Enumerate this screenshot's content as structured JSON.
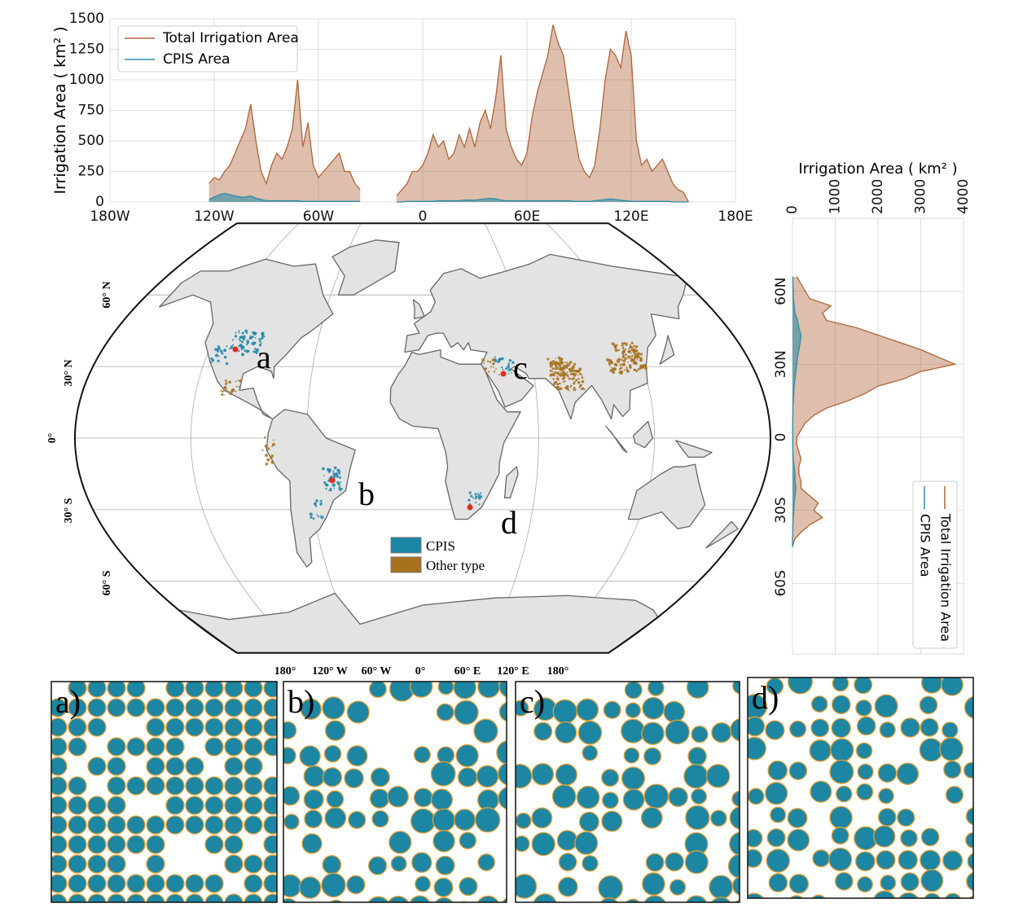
{
  "chart_data": [
    {
      "type": "area",
      "ylabel": "Irrigation Area ( km² )",
      "x": [
        -123,
        -120,
        -117,
        -114,
        -111,
        -108,
        -105,
        -102,
        -99,
        -96,
        -93,
        -90,
        -87,
        -84,
        -81,
        -78,
        -75,
        -72,
        -69,
        -66,
        -63,
        -60,
        -57,
        -54,
        -51,
        -48,
        -45,
        -42,
        -39,
        -36,
        -33,
        -30,
        -27,
        -24,
        -21,
        -18,
        -15,
        -12,
        -9,
        -6,
        -3,
        0,
        3,
        6,
        9,
        12,
        15,
        18,
        21,
        24,
        27,
        30,
        33,
        36,
        39,
        42,
        45,
        48,
        51,
        54,
        57,
        60,
        63,
        66,
        69,
        72,
        75,
        78,
        81,
        84,
        87,
        90,
        93,
        96,
        99,
        102,
        105,
        108,
        111,
        114,
        117,
        120,
        123,
        126,
        129,
        132,
        135,
        138,
        141,
        144,
        147,
        150,
        153
      ],
      "series": [
        {
          "name": "Total Irrigation Area",
          "color": "#b0643a",
          "values": [
            150,
            200,
            180,
            250,
            300,
            400,
            500,
            600,
            800,
            500,
            250,
            150,
            300,
            400,
            350,
            450,
            600,
            1000,
            450,
            650,
            300,
            200,
            250,
            300,
            350,
            400,
            250,
            250,
            150,
            100,
            null,
            null,
            null,
            null,
            null,
            null,
            50,
            100,
            150,
            250,
            250,
            300,
            400,
            550,
            450,
            500,
            350,
            400,
            550,
            450,
            600,
            450,
            650,
            750,
            600,
            850,
            1200,
            600,
            450,
            350,
            300,
            400,
            700,
            900,
            1050,
            1200,
            1450,
            1300,
            1200,
            900,
            600,
            350,
            250,
            200,
            300,
            600,
            1000,
            1250,
            1200,
            1100,
            1400,
            1200,
            500,
            300,
            350,
            250,
            300,
            350,
            250,
            150,
            100,
            80,
            0
          ]
        },
        {
          "name": "CPIS Area",
          "color": "#2f8ea6",
          "values": [
            20,
            40,
            60,
            70,
            60,
            50,
            40,
            40,
            50,
            30,
            20,
            10,
            10,
            10,
            10,
            10,
            10,
            10,
            5,
            5,
            5,
            5,
            5,
            5,
            5,
            5,
            5,
            5,
            5,
            5,
            null,
            null,
            null,
            null,
            null,
            null,
            0,
            0,
            5,
            5,
            5,
            5,
            5,
            5,
            10,
            10,
            10,
            10,
            10,
            15,
            15,
            15,
            20,
            25,
            30,
            25,
            15,
            10,
            10,
            10,
            10,
            10,
            10,
            10,
            10,
            10,
            10,
            10,
            10,
            10,
            5,
            5,
            5,
            5,
            10,
            15,
            20,
            25,
            20,
            15,
            10,
            5,
            5,
            5,
            5,
            5,
            5,
            5,
            5,
            0,
            0,
            0,
            0
          ]
        }
      ],
      "xlim": [
        -180,
        180
      ],
      "xticks": [
        {
          "value": -180,
          "label": "180W"
        },
        {
          "value": -120,
          "label": "120W"
        },
        {
          "value": -60,
          "label": "60W"
        },
        0,
        {
          "value": 60,
          "label": "60E"
        },
        {
          "value": 120,
          "label": "120E"
        },
        {
          "value": 180,
          "label": "180E"
        }
      ],
      "ylim": [
        0,
        1500
      ],
      "yticks": [
        0,
        250,
        500,
        750,
        1000,
        1250,
        1500
      ],
      "grid": true,
      "legend": "upper left"
    },
    {
      "type": "area",
      "orientation": "horizontal",
      "xlabel": "Irrigation Area ( km² )",
      "y": [
        66,
        63,
        60,
        57,
        54,
        51,
        48,
        45,
        42,
        39,
        36,
        33,
        30,
        27,
        24,
        21,
        18,
        15,
        12,
        9,
        6,
        3,
        0,
        -3,
        -6,
        -9,
        -12,
        -15,
        -18,
        -21,
        -24,
        -27,
        -30,
        -33,
        -36,
        -39,
        -42,
        -45
      ],
      "series": [
        {
          "name": "Total Irrigation Area",
          "color": "#b0643a",
          "values": [
            100,
            200,
            300,
            400,
            900,
            700,
            800,
            1500,
            2000,
            2500,
            3000,
            3400,
            3800,
            3000,
            2600,
            2000,
            1700,
            1300,
            800,
            500,
            300,
            200,
            100,
            100,
            150,
            200,
            150,
            150,
            200,
            200,
            400,
            600,
            500,
            700,
            400,
            200,
            50,
            0
          ]
        },
        {
          "name": "CPIS Area",
          "color": "#2f8ea6",
          "values": [
            10,
            10,
            20,
            20,
            40,
            60,
            120,
            150,
            200,
            180,
            150,
            120,
            100,
            80,
            60,
            40,
            30,
            20,
            10,
            10,
            5,
            5,
            5,
            5,
            10,
            20,
            40,
            60,
            60,
            80,
            60,
            40,
            30,
            20,
            10,
            5,
            0,
            0
          ]
        }
      ],
      "xlim": [
        0,
        4000
      ],
      "xticks": [
        0,
        1000,
        2000,
        3000,
        4000
      ],
      "ylim": [
        -89,
        90
      ],
      "yticks": [
        {
          "value": 60,
          "label": "60N"
        },
        {
          "value": 30,
          "label": "30N"
        },
        0,
        {
          "value": -30,
          "label": "30S"
        },
        {
          "value": -60,
          "label": "60S"
        }
      ],
      "grid": true,
      "legend": "lower right"
    }
  ],
  "map": {
    "lat_labels": [
      "60° N",
      "30° N",
      "0°",
      "30° S",
      "60° S"
    ],
    "lon_labels": [
      "180°",
      "120° W",
      "60° W",
      "0°",
      "60° E",
      "120° E",
      "180°"
    ],
    "sites": [
      "a",
      "b",
      "c",
      "d"
    ],
    "legend": [
      {
        "label": "CPIS",
        "color": "#1b85a6"
      },
      {
        "label": "Other type",
        "color": "#a8711d"
      }
    ]
  },
  "panels": [
    "a)",
    "b)",
    "c)",
    "d)"
  ]
}
